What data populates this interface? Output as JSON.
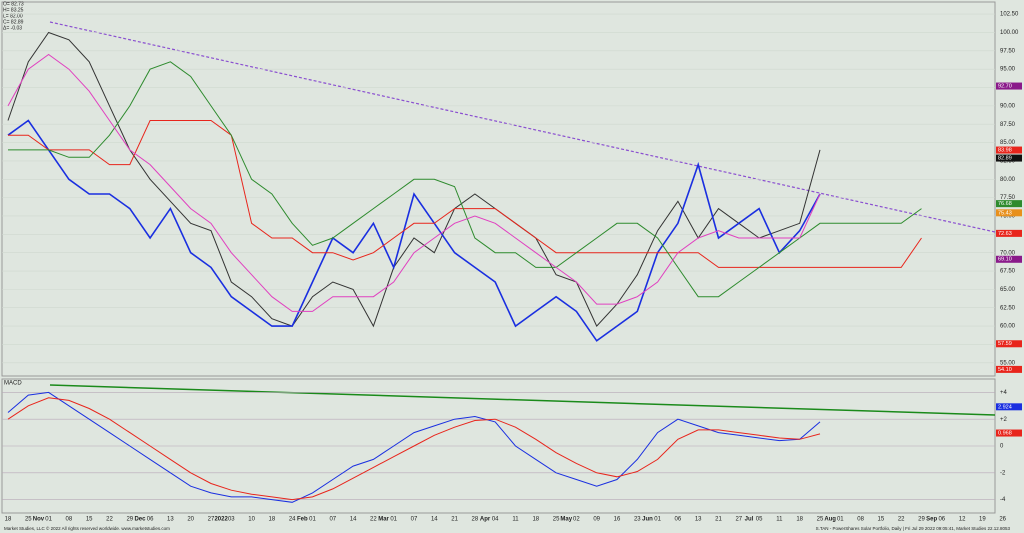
{
  "ohlc_box": [
    "O= 82.73",
    "H= 83.25",
    "L= 82.00",
    "C= 82.89",
    "Δ= -0.03"
  ],
  "footer_left": "Market Studies, LLC © 2022 All rights reserved worldwide. www.marketstudies.com",
  "footer_right": "S.TAN - PowerShares Solar Portfolio, Daily | Fri Jul 29 2022 09:05:41, Market Studies 22.12.8053",
  "month_labels": [
    "Nov",
    "Dec",
    "2022",
    "Feb",
    "Mar",
    "Apr",
    "May",
    "Jun",
    "Jul",
    "Aug",
    "Sep"
  ],
  "chart_data": [
    {
      "type": "line",
      "categories": [
        "18",
        "25",
        "01",
        "08",
        "15",
        "22",
        "29",
        "06",
        "13",
        "20",
        "27",
        "03",
        "10",
        "18",
        "24",
        "01",
        "07",
        "14",
        "22",
        "01",
        "07",
        "14",
        "21",
        "28",
        "04",
        "11",
        "18",
        "25",
        "02",
        "09",
        "16",
        "23",
        "01",
        "06",
        "13",
        "21",
        "27",
        "05",
        "11",
        "18",
        "25",
        "01",
        "08",
        "15",
        "22",
        "29",
        "06",
        "12",
        "19",
        "26"
      ],
      "series": [
        {
          "name": "Close",
          "color": "#333333",
          "values": [
            88,
            96,
            100,
            99,
            96,
            90,
            84,
            80,
            77,
            74,
            73,
            66,
            64,
            61,
            60,
            64,
            66,
            65,
            60,
            68,
            72,
            70,
            76,
            78,
            76,
            74,
            72,
            67,
            66,
            60,
            63,
            67,
            73,
            77,
            72,
            76,
            74,
            72,
            73,
            74,
            84,
            null,
            null,
            null,
            null,
            null,
            null,
            null,
            null,
            null
          ]
        },
        {
          "name": "Blue",
          "color": "#1a2fe0",
          "values": [
            86,
            88,
            84,
            80,
            78,
            78,
            76,
            72,
            76,
            70,
            68,
            64,
            62,
            60,
            60,
            66,
            72,
            70,
            74,
            68,
            78,
            74,
            70,
            68,
            66,
            60,
            62,
            64,
            62,
            58,
            60,
            62,
            70,
            74,
            82,
            72,
            74,
            76,
            70,
            73,
            78,
            null,
            null,
            null,
            null,
            null,
            null,
            null,
            null,
            null
          ]
        },
        {
          "name": "Kijun",
          "color": "#e8251c",
          "values": [
            86,
            86,
            84,
            84,
            84,
            82,
            82,
            88,
            88,
            88,
            88,
            86,
            74,
            72,
            72,
            70,
            70,
            69,
            70,
            72,
            74,
            74,
            76,
            76,
            76,
            74,
            72,
            70,
            70,
            70,
            70,
            70,
            70,
            70,
            70,
            68,
            68,
            68,
            68,
            68,
            68,
            68,
            68,
            68,
            68,
            72,
            null,
            null,
            null,
            null
          ]
        },
        {
          "name": "Span",
          "color": "#2e8b2e",
          "values": [
            84,
            84,
            84,
            83,
            83,
            86,
            90,
            95,
            96,
            94,
            90,
            86,
            80,
            78,
            74,
            71,
            72,
            74,
            76,
            78,
            80,
            80,
            79,
            72,
            70,
            70,
            68,
            68,
            70,
            72,
            74,
            74,
            72,
            68,
            64,
            64,
            66,
            68,
            70,
            72,
            74,
            74,
            74,
            74,
            74,
            76,
            null,
            null,
            null,
            null
          ]
        },
        {
          "name": "Pink",
          "color": "#e040c0",
          "values": [
            90,
            95,
            97,
            95,
            92,
            88,
            84,
            82,
            79,
            76,
            74,
            70,
            67,
            64,
            62,
            62,
            64,
            64,
            64,
            66,
            70,
            72,
            74,
            75,
            74,
            72,
            70,
            68,
            66,
            63,
            63,
            64,
            66,
            70,
            72,
            73,
            72,
            72,
            72,
            72,
            78,
            null,
            null,
            null,
            null,
            null,
            null,
            null,
            null,
            null
          ]
        }
      ],
      "ylim": [
        53.2,
        104.15
      ],
      "yticks": [
        {
          "value": 55,
          "label": "55.00"
        },
        {
          "value": 57.5,
          "label": "57.50"
        },
        {
          "value": 60,
          "label": "60.00"
        },
        {
          "value": 62.5,
          "label": "62.50"
        },
        {
          "value": 65,
          "label": "65.00"
        },
        {
          "value": 67.5,
          "label": "67.50"
        },
        {
          "value": 70,
          "label": "70.00"
        },
        {
          "value": 72.5,
          "label": "72.50"
        },
        {
          "value": 75,
          "label": "75.00"
        },
        {
          "value": 77.5,
          "label": "77.50"
        },
        {
          "value": 80,
          "label": "80.00"
        },
        {
          "value": 82.5,
          "label": "82.50"
        },
        {
          "value": 85,
          "label": "85.00"
        },
        {
          "value": 87.5,
          "label": "87.50"
        },
        {
          "value": 90,
          "label": "90.00"
        },
        {
          "value": 92.5,
          "label": "92.50"
        },
        {
          "value": 95,
          "label": "95.00"
        },
        {
          "value": 97.5,
          "label": "97.50"
        },
        {
          "value": 100,
          "label": "100.00"
        },
        {
          "value": 102.5,
          "label": "102.50"
        }
      ],
      "price_labels": [
        {
          "value": 92.7,
          "label": "92.70",
          "color": "#8a1a8a"
        },
        {
          "value": 83.98,
          "label": "83.98",
          "color": "#e8251c"
        },
        {
          "value": 82.89,
          "label": "82.89",
          "color": "#111111"
        },
        {
          "value": 76.68,
          "label": "76.68",
          "color": "#2e8b2e"
        },
        {
          "value": 75.43,
          "label": "75.43",
          "color": "#e8901c"
        },
        {
          "value": 72.63,
          "label": "72.63",
          "color": "#e8251c"
        },
        {
          "value": 69.1,
          "label": "69.10",
          "color": "#8a1a8a"
        },
        {
          "value": 57.59,
          "label": "57.59",
          "color": "#e8251c"
        },
        {
          "value": 54.1,
          "label": "54.10",
          "color": "#e8251c"
        }
      ],
      "grid": true
    },
    {
      "type": "line",
      "title": "MACD",
      "series": [
        {
          "name": "MACD",
          "color": "#1a2fe0",
          "values": [
            2.5,
            3.8,
            4,
            3,
            2,
            1,
            0,
            -1,
            -2,
            -3,
            -3.5,
            -3.8,
            -3.8,
            -4,
            -4.2,
            -3.5,
            -2.5,
            -1.5,
            -1,
            0,
            1,
            1.5,
            2,
            2.2,
            1.8,
            0,
            -1,
            -2,
            -2.5,
            -3,
            -2.5,
            -1,
            1,
            2,
            1.5,
            1,
            0.8,
            0.6,
            0.4,
            0.5,
            1.8
          ]
        },
        {
          "name": "Signal",
          "color": "#e8251c",
          "values": [
            2,
            3,
            3.6,
            3.4,
            2.8,
            2,
            1,
            0,
            -1,
            -2,
            -2.8,
            -3.3,
            -3.6,
            -3.8,
            -4,
            -3.8,
            -3.2,
            -2.4,
            -1.6,
            -0.8,
            0,
            0.8,
            1.4,
            1.9,
            2,
            1.4,
            0.5,
            -0.5,
            -1.3,
            -2,
            -2.3,
            -1.9,
            -1,
            0.5,
            1.2,
            1.2,
            1,
            0.8,
            0.6,
            0.5,
            0.9
          ]
        }
      ],
      "ylim": [
        -5,
        5
      ],
      "yticks": [
        -4,
        -2,
        0,
        {
          "value": 2,
          "label": "+2"
        },
        {
          "value": 4,
          "label": "+4"
        }
      ],
      "price_labels": [
        {
          "value": 2.924,
          "label": "2.924",
          "color": "#1a2fe0"
        },
        {
          "value": 0.968,
          "label": "0.968",
          "color": "#e8251c"
        }
      ],
      "grid": true
    }
  ]
}
